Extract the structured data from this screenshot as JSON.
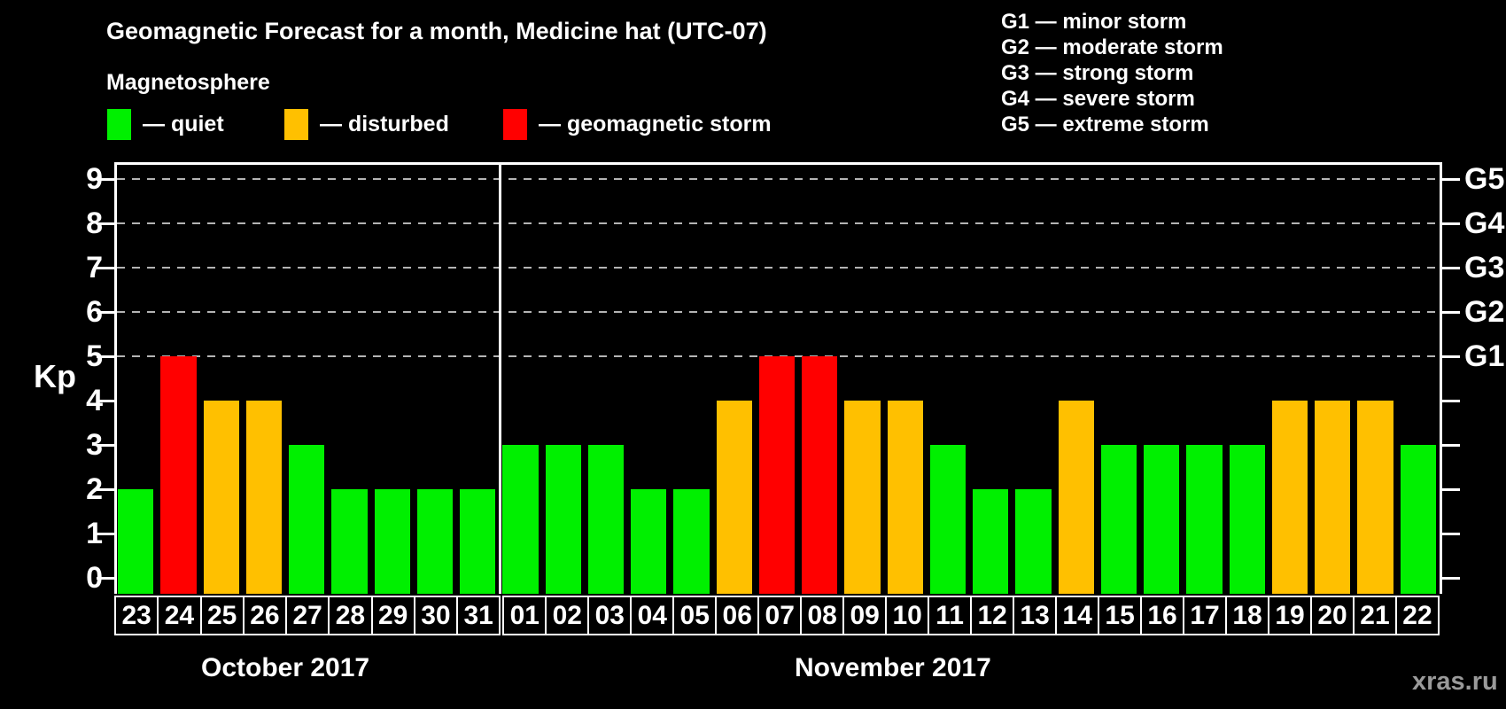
{
  "title": "Geomagnetic Forecast for a month, Medicine hat (UTC-07)",
  "subtitle": "Magnetosphere",
  "legend": {
    "items": [
      {
        "key": "quiet",
        "label": "— quiet",
        "color": "#00f000"
      },
      {
        "key": "disturbed",
        "label": "— disturbed",
        "color": "#ffc000"
      },
      {
        "key": "storm",
        "label": "— geomagnetic storm",
        "color": "#ff0000"
      }
    ]
  },
  "g_scale_legend": [
    "G1 — minor storm",
    "G2 — moderate storm",
    "G3 — strong storm",
    "G4 — severe storm",
    "G5 — extreme storm"
  ],
  "y_axis": {
    "label": "Kp",
    "ticks": [
      "0",
      "1",
      "2",
      "3",
      "4",
      "5",
      "6",
      "7",
      "8",
      "9"
    ]
  },
  "right_axis": {
    "labels": [
      {
        "kp": 5,
        "text": "G1"
      },
      {
        "kp": 6,
        "text": "G2"
      },
      {
        "kp": 7,
        "text": "G3"
      },
      {
        "kp": 8,
        "text": "G4"
      },
      {
        "kp": 9,
        "text": "G5"
      }
    ]
  },
  "status_colors": {
    "quiet": "#00f000",
    "disturbed": "#ffc000",
    "storm": "#ff0000"
  },
  "watermark": "xras.ru",
  "chart_data": {
    "type": "bar",
    "title": "Geomagnetic Forecast for a month, Medicine hat (UTC-07)",
    "ylabel": "Kp",
    "ylim": [
      0,
      9
    ],
    "gridlines_at": [
      5,
      6,
      7,
      8,
      9
    ],
    "legend_position": "top",
    "months": [
      {
        "label": "October 2017",
        "days": [
          {
            "day": "23",
            "kp": 2,
            "status": "quiet"
          },
          {
            "day": "24",
            "kp": 5,
            "status": "storm"
          },
          {
            "day": "25",
            "kp": 4,
            "status": "disturbed"
          },
          {
            "day": "26",
            "kp": 4,
            "status": "disturbed"
          },
          {
            "day": "27",
            "kp": 3,
            "status": "quiet"
          },
          {
            "day": "28",
            "kp": 2,
            "status": "quiet"
          },
          {
            "day": "29",
            "kp": 2,
            "status": "quiet"
          },
          {
            "day": "30",
            "kp": 2,
            "status": "quiet"
          },
          {
            "day": "31",
            "kp": 2,
            "status": "quiet"
          }
        ]
      },
      {
        "label": "November 2017",
        "days": [
          {
            "day": "01",
            "kp": 3,
            "status": "quiet"
          },
          {
            "day": "02",
            "kp": 3,
            "status": "quiet"
          },
          {
            "day": "03",
            "kp": 3,
            "status": "quiet"
          },
          {
            "day": "04",
            "kp": 2,
            "status": "quiet"
          },
          {
            "day": "05",
            "kp": 2,
            "status": "quiet"
          },
          {
            "day": "06",
            "kp": 4,
            "status": "disturbed"
          },
          {
            "day": "07",
            "kp": 5,
            "status": "storm"
          },
          {
            "day": "08",
            "kp": 5,
            "status": "storm"
          },
          {
            "day": "09",
            "kp": 4,
            "status": "disturbed"
          },
          {
            "day": "10",
            "kp": 4,
            "status": "disturbed"
          },
          {
            "day": "11",
            "kp": 3,
            "status": "quiet"
          },
          {
            "day": "12",
            "kp": 2,
            "status": "quiet"
          },
          {
            "day": "13",
            "kp": 2,
            "status": "quiet"
          },
          {
            "day": "14",
            "kp": 4,
            "status": "disturbed"
          },
          {
            "day": "15",
            "kp": 3,
            "status": "quiet"
          },
          {
            "day": "16",
            "kp": 3,
            "status": "quiet"
          },
          {
            "day": "17",
            "kp": 3,
            "status": "quiet"
          },
          {
            "day": "18",
            "kp": 3,
            "status": "quiet"
          },
          {
            "day": "19",
            "kp": 4,
            "status": "disturbed"
          },
          {
            "day": "20",
            "kp": 4,
            "status": "disturbed"
          },
          {
            "day": "21",
            "kp": 4,
            "status": "disturbed"
          },
          {
            "day": "22",
            "kp": 3,
            "status": "quiet"
          }
        ]
      }
    ]
  }
}
